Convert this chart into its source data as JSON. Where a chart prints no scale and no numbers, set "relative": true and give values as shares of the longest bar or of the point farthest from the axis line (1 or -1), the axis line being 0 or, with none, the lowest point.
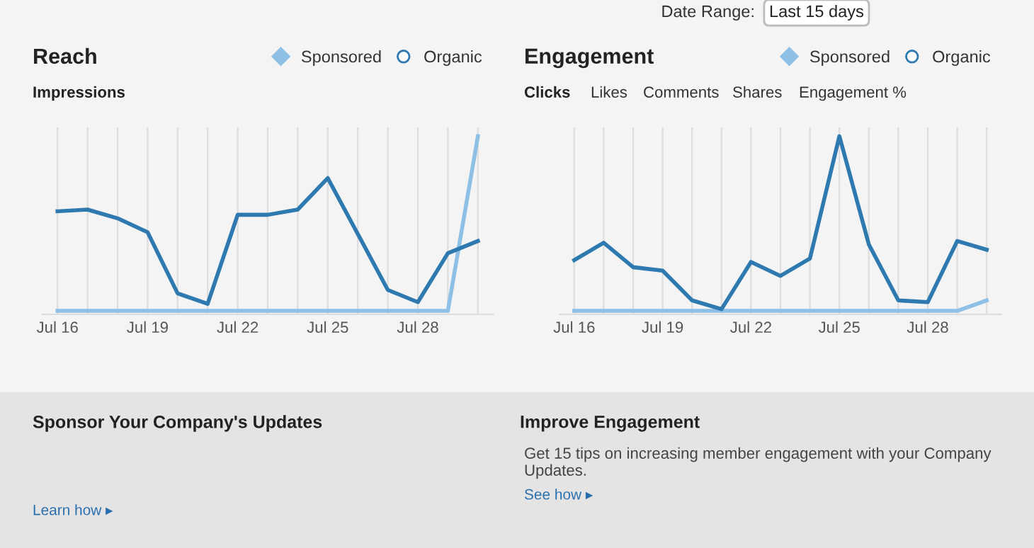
{
  "chart_data": [
    {
      "type": "line",
      "title": "Reach",
      "subtitle": "Impressions",
      "relative": true,
      "grid": "x",
      "legend": "top right",
      "line_style": "solid",
      "categories": [
        "Jul 16",
        null,
        null,
        "Jul 19",
        null,
        null,
        "Jul 22",
        null,
        null,
        "Jul 25",
        null,
        null,
        "Jul 28",
        null,
        null
      ],
      "series": [
        {
          "name": "Sponsored",
          "color": "#8ec0e6",
          "values": [
            0,
            0,
            0,
            0,
            0,
            0,
            0,
            0,
            0,
            0,
            0,
            0,
            0,
            0,
            1
          ]
        },
        {
          "name": "Organic",
          "color": "#2e7ab0",
          "values": [
            0.57,
            0.58,
            0.53,
            0.45,
            0.1,
            0.04,
            0.55,
            0.55,
            0.58,
            0.76,
            0.44,
            0.12,
            0.05,
            0.33,
            0.4
          ]
        }
      ]
    },
    {
      "type": "line",
      "title": "Engagement",
      "subtitle": "Clicks",
      "relative": true,
      "grid": "x",
      "legend": "top right",
      "line_style": "solid",
      "annotations": [
        "Likes",
        "Comments",
        "Shares",
        "Engagement %"
      ],
      "categories": [
        "Jul 16",
        null,
        null,
        "Jul 19",
        null,
        null,
        "Jul 22",
        null,
        null,
        "Jul 25",
        null,
        null,
        "Jul 28",
        null,
        null
      ],
      "series": [
        {
          "name": "Sponsored",
          "color": "#8ec0e6",
          "values": [
            0,
            0,
            0,
            0,
            0,
            0,
            0,
            0,
            0,
            0,
            0,
            0,
            0,
            0,
            0.06
          ]
        },
        {
          "name": "Organic",
          "color": "#2e7ab0",
          "values": [
            0.29,
            0.39,
            0.25,
            0.23,
            0.06,
            0.01,
            0.28,
            0.2,
            0.3,
            1,
            0.38,
            0.06,
            0.05,
            0.4,
            0.35
          ]
        }
      ]
    },
    {
      "type": "other",
      "annotations": [
        "Date Range:",
        "Last 15 days",
        "Sponsor Your Company's Updates",
        "Learn how ▸",
        "Improve Engagement",
        "Get 15 tips on increasing member engagement with your Company Updates.",
        "See how ▸"
      ]
    }
  ]
}
